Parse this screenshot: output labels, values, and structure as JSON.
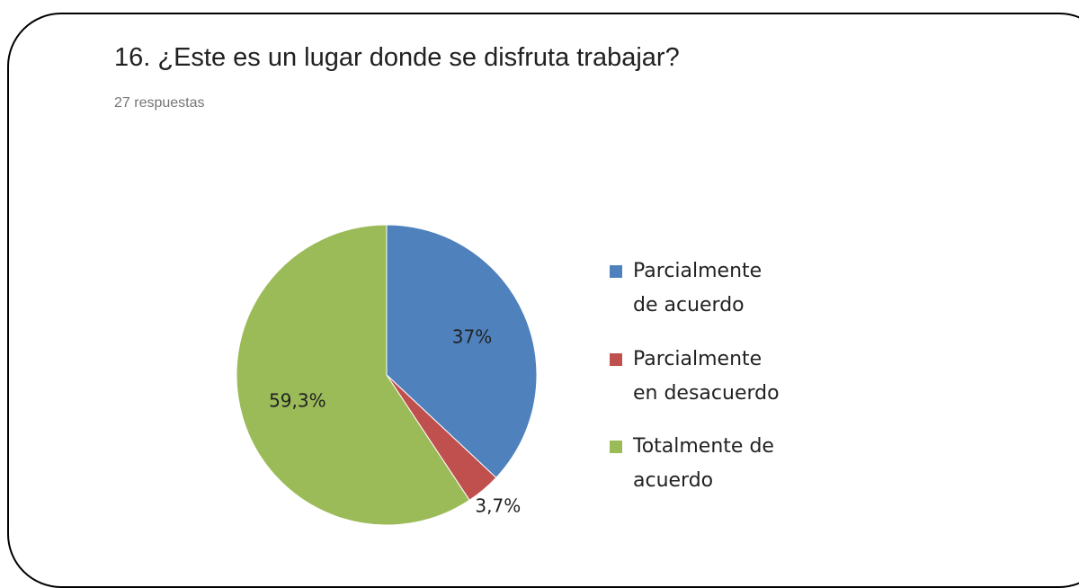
{
  "chart_data": {
    "type": "pie",
    "title": "16. ¿Este es un lugar donde se disfruta trabajar?",
    "subtitle": "27 respuestas",
    "categories": [
      "Parcialmente de acuerdo",
      "Parcialmente en desacuerdo",
      "Totalmente de acuerdo"
    ],
    "values": [
      37,
      3.7,
      59.3
    ],
    "value_labels": [
      "37%",
      "3,7%",
      "59,3%"
    ],
    "colors": [
      "#4f81bd",
      "#c0504d",
      "#9bbb59"
    ],
    "legend": "right"
  }
}
